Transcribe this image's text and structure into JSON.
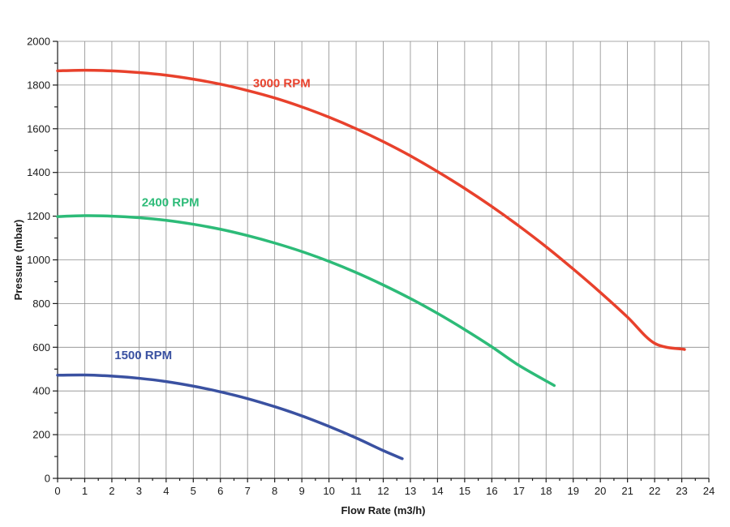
{
  "chart_data": {
    "type": "line",
    "title": "",
    "xlabel": "Flow Rate (m3/h)",
    "ylabel": "Pressure (mbar)",
    "xlim": [
      0,
      24
    ],
    "ylim": [
      0,
      2000
    ],
    "x_ticks": [
      "0",
      "1",
      "2",
      "3",
      "4",
      "5",
      "6",
      "7",
      "8",
      "9",
      "10",
      "11",
      "12",
      "13",
      "14",
      "15",
      "16",
      "17",
      "18",
      "19",
      "20",
      "21",
      "22",
      "23",
      "24"
    ],
    "y_ticks": [
      "0",
      "200",
      "400",
      "600",
      "800",
      "1000",
      "1200",
      "1400",
      "1600",
      "1800",
      "2000"
    ],
    "grid": true,
    "legend": "inline labels",
    "series": [
      {
        "name": "3000 RPM",
        "color": "#e8412c",
        "x": [
          0,
          1,
          2,
          3,
          4,
          5,
          6,
          7,
          8,
          9,
          10,
          11,
          12,
          13,
          14,
          15,
          16,
          17,
          18,
          19,
          20,
          21,
          22,
          23.1
        ],
        "y": [
          1865,
          1868,
          1865,
          1857,
          1845,
          1827,
          1804,
          1775,
          1741,
          1700,
          1653,
          1600,
          1541,
          1476,
          1404,
          1327,
          1244,
          1155,
          1060,
          958,
          851,
          738,
          618,
          590
        ]
      },
      {
        "name": "2400 RPM",
        "color": "#2dbb78",
        "x": [
          0,
          1,
          2,
          3,
          4,
          5,
          6,
          7,
          8,
          9,
          10,
          11,
          12,
          13,
          14,
          15,
          16,
          17,
          18.3
        ],
        "y": [
          1198,
          1202,
          1200,
          1193,
          1181,
          1163,
          1140,
          1111,
          1077,
          1038,
          993,
          942,
          885,
          823,
          755,
          681,
          602,
          517,
          425
        ]
      },
      {
        "name": "1500 RPM",
        "color": "#3a51a1",
        "x": [
          0,
          1,
          2,
          3,
          4,
          5,
          6,
          7,
          8,
          9,
          10,
          11,
          12,
          12.7
        ],
        "y": [
          472,
          473,
          468,
          458,
          443,
          422,
          396,
          365,
          328,
          286,
          238,
          185,
          127,
          90
        ]
      }
    ]
  }
}
